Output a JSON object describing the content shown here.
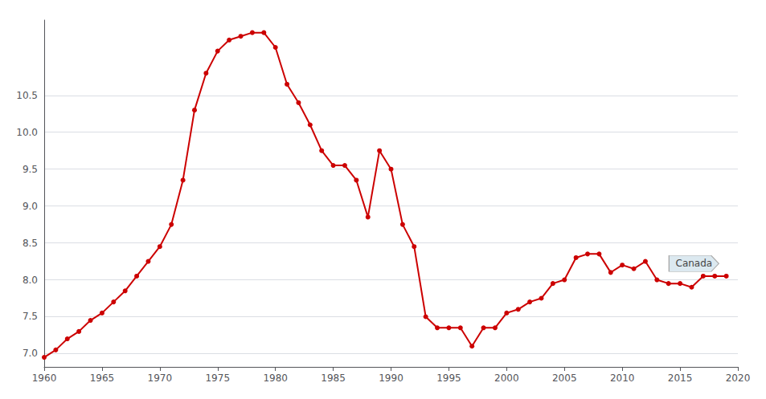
{
  "chart_data": {
    "type": "line",
    "x": [
      1960,
      1961,
      1962,
      1963,
      1964,
      1965,
      1966,
      1967,
      1968,
      1969,
      1970,
      1971,
      1972,
      1973,
      1974,
      1975,
      1976,
      1977,
      1978,
      1979,
      1980,
      1981,
      1982,
      1983,
      1984,
      1985,
      1986,
      1987,
      1988,
      1989,
      1990,
      1991,
      1992,
      1993,
      1994,
      1995,
      1996,
      1997,
      1998,
      1999,
      2000,
      2001,
      2002,
      2003,
      2004,
      2005,
      2006,
      2007,
      2008,
      2009,
      2010,
      2011,
      2012,
      2013,
      2014,
      2015,
      2016,
      2017,
      2018,
      2019
    ],
    "values": [
      6.95,
      7.05,
      7.2,
      7.3,
      7.45,
      7.55,
      7.7,
      7.85,
      8.05,
      8.25,
      8.45,
      8.75,
      9.35,
      10.3,
      10.8,
      11.1,
      11.25,
      11.3,
      11.35,
      11.35,
      11.15,
      10.65,
      10.4,
      10.1,
      9.75,
      9.55,
      9.55,
      9.35,
      8.85,
      9.75,
      9.5,
      8.75,
      8.45,
      7.5,
      7.35,
      7.35,
      7.35,
      7.1,
      7.35,
      7.35,
      7.55,
      7.6,
      7.7,
      7.75,
      7.95,
      8.0,
      8.3,
      8.35,
      8.35,
      8.1,
      8.2,
      8.15,
      8.25,
      8.0,
      7.95,
      7.95,
      7.9,
      8.05,
      8.05,
      8.05
    ],
    "color": "#cc0000",
    "marker": "circle",
    "xlim": [
      1960,
      2020
    ],
    "ylim": [
      6.82,
      11.52
    ],
    "xticks": [
      1960,
      1965,
      1970,
      1975,
      1980,
      1985,
      1990,
      1995,
      2000,
      2005,
      2010,
      2015,
      2020
    ],
    "yticks": [
      {
        "value": 7.0,
        "label": "7.0"
      },
      {
        "value": 7.5,
        "label": "7.5"
      },
      {
        "value": 8.0,
        "label": "8.0"
      },
      {
        "value": 8.5,
        "label": "8.5"
      },
      {
        "value": 9.0,
        "label": "9.0"
      },
      {
        "value": 9.5,
        "label": "9.5"
      },
      {
        "value": 10.0,
        "label": "10.0"
      },
      {
        "value": 10.5,
        "label": "10.5"
      }
    ],
    "grid": true,
    "annotations": [
      {
        "text": "Canada",
        "x": 2016.2,
        "y": 8.22
      }
    ]
  }
}
